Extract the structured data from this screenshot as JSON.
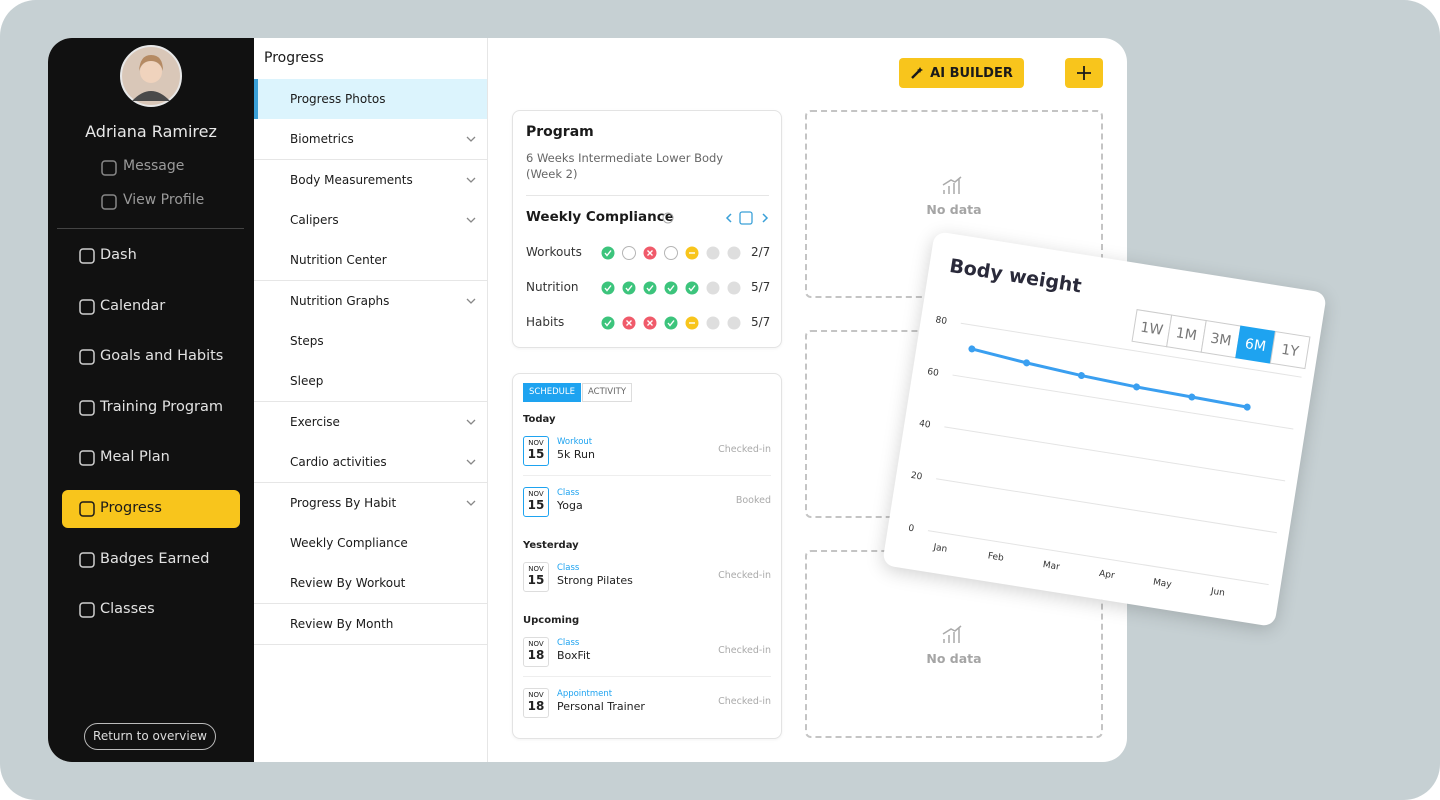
{
  "profile": {
    "name": "Adriana Ramirez",
    "links": [
      "Message",
      "View Profile"
    ]
  },
  "nav": {
    "items": [
      "Dash",
      "Calendar",
      "Goals and Habits",
      "Training Program",
      "Meal Plan",
      "Progress",
      "Badges Earned",
      "Classes"
    ],
    "active": 5,
    "footer": "Return to overview"
  },
  "submenu": {
    "title": "Progress",
    "active": 0,
    "items": [
      {
        "label": "Progress Photos",
        "expandable": false
      },
      {
        "label": "Biometrics",
        "expandable": true
      },
      {
        "label": "Body Measurements",
        "expandable": true
      },
      {
        "label": "Calipers",
        "expandable": true
      },
      {
        "label": "Nutrition Center",
        "expandable": false
      },
      {
        "label": "Nutrition Graphs",
        "expandable": true
      },
      {
        "label": "Steps",
        "expandable": false
      },
      {
        "label": "Sleep",
        "expandable": false
      },
      {
        "label": "Exercise",
        "expandable": true
      },
      {
        "label": "Cardio activities",
        "expandable": true
      },
      {
        "label": "Progress By Habit",
        "expandable": true
      },
      {
        "label": "Weekly Compliance",
        "expandable": false
      },
      {
        "label": "Review By Workout",
        "expandable": false
      },
      {
        "label": "Review By Month",
        "expandable": false
      }
    ]
  },
  "toolbar": {
    "ai_button": "AI BUILDER"
  },
  "program": {
    "heading": "Program",
    "name": "6 Weeks Intermediate Lower Body (Week 2)",
    "compliance_title": "Weekly Compliance",
    "rows": [
      {
        "label": "Workouts",
        "days": [
          "done",
          "open",
          "missed",
          "open",
          "partial",
          "none",
          "none"
        ],
        "score": "2/7"
      },
      {
        "label": "Nutrition",
        "days": [
          "done",
          "done",
          "done",
          "done",
          "done",
          "none",
          "none"
        ],
        "score": "5/7"
      },
      {
        "label": "Habits",
        "days": [
          "done",
          "missed",
          "missed",
          "done",
          "partial",
          "none",
          "none"
        ],
        "score": "5/7"
      }
    ]
  },
  "schedule": {
    "tabs": [
      "SCHEDULE",
      "ACTIVITY"
    ],
    "active_tab": 0,
    "groups": [
      {
        "title": "Today",
        "events": [
          {
            "month": "NOV",
            "day": "15",
            "type": "Workout",
            "title": "5k Run",
            "status": "Checked-in",
            "highlight": true
          },
          {
            "month": "NOV",
            "day": "15",
            "type": "Class",
            "title": "Yoga",
            "status": "Booked",
            "highlight": true
          }
        ]
      },
      {
        "title": "Yesterday",
        "events": [
          {
            "month": "NOV",
            "day": "15",
            "type": "Class",
            "title": "Strong Pilates",
            "status": "Checked-in",
            "highlight": false
          }
        ]
      },
      {
        "title": "Upcoming",
        "events": [
          {
            "month": "NOV",
            "day": "18",
            "type": "Class",
            "title": "BoxFit",
            "status": "Checked-in",
            "highlight": false
          },
          {
            "month": "NOV",
            "day": "18",
            "type": "Appointment",
            "title": "Personal Trainer",
            "status": "Checked-in",
            "highlight": false
          }
        ]
      }
    ]
  },
  "placeholders": [
    "No data",
    "No data"
  ],
  "chart_data": {
    "type": "line",
    "title": "Body weight",
    "ranges": [
      "1W",
      "1M",
      "3M",
      "6M",
      "1Y"
    ],
    "active_range": 3,
    "categories": [
      "Jan",
      "Feb",
      "Mar",
      "Apr",
      "May",
      "Jun"
    ],
    "values": [
      71,
      69,
      67.5,
      66.5,
      66,
      65.5
    ],
    "color": "#3a9ff0",
    "ylim": [
      0,
      80
    ],
    "yticks": [
      0,
      20,
      40,
      60,
      80
    ],
    "grid": true
  }
}
